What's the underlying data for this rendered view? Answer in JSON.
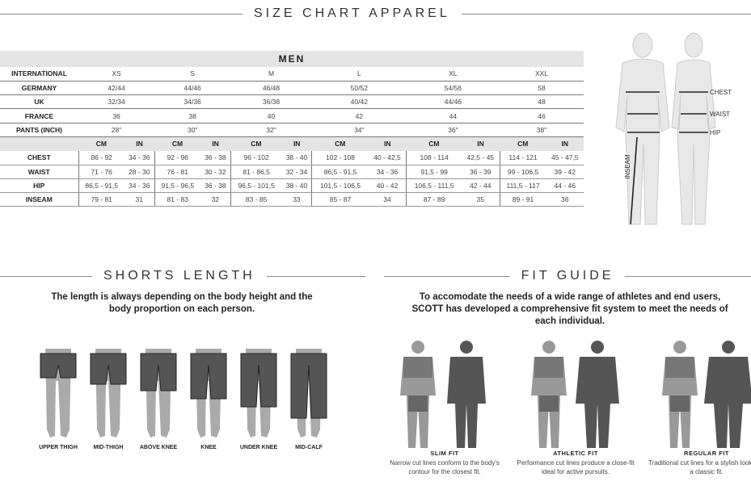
{
  "title": "SIZE CHART APPAREL",
  "men": {
    "header": "MEN",
    "sizes": [
      "XS",
      "S",
      "M",
      "L",
      "XL",
      "XXL"
    ],
    "conversion_rows": [
      {
        "label": "INTERNATIONAL",
        "values": [
          "XS",
          "S",
          "M",
          "L",
          "XL",
          "XXL"
        ]
      },
      {
        "label": "GERMANY",
        "values": [
          "42/44",
          "44/46",
          "46/48",
          "50/52",
          "54/56",
          "58"
        ]
      },
      {
        "label": "UK",
        "values": [
          "32/34",
          "34/36",
          "36/38",
          "40/42",
          "44/46",
          "48"
        ]
      },
      {
        "label": "FRANCE",
        "values": [
          "36",
          "38",
          "40",
          "42",
          "44",
          "46"
        ]
      },
      {
        "label": "PANTS (INCH)",
        "values": [
          "28\"",
          "30\"",
          "32\"",
          "34\"",
          "36\"",
          "38\""
        ]
      }
    ],
    "unit_cm": "CM",
    "unit_in": "IN",
    "measure_rows": [
      {
        "label": "CHEST",
        "values": [
          "86 - 92",
          "34 - 36",
          "92 - 96",
          "36 - 38",
          "96 - 102",
          "38 - 40",
          "102 - 108",
          "40 - 42,5",
          "108 - 114",
          "42,5 - 45",
          "114 - 121",
          "45 - 47,5"
        ]
      },
      {
        "label": "WAIST",
        "values": [
          "71 - 76",
          "28 - 30",
          "76 - 81",
          "30 - 32",
          "81 - 86,5",
          "32 - 34",
          "86,5 - 91,5",
          "34 - 36",
          "91,5 - 99",
          "36 - 39",
          "99 - 106,5",
          "39 - 42"
        ]
      },
      {
        "label": "HIP",
        "values": [
          "86,5 - 91,5",
          "34 - 36",
          "91,5 - 96,5",
          "36 - 38",
          "96,5 - 101,5",
          "38 - 40",
          "101,5 - 106,5",
          "40 - 42",
          "106,5 - 111,5",
          "42 - 44",
          "111,5 - 117",
          "44 - 46"
        ]
      },
      {
        "label": "INSEAM",
        "values": [
          "79 - 81",
          "31",
          "81 - 83",
          "32",
          "83 - 85",
          "33",
          "85 - 87",
          "34",
          "87 - 89",
          "35",
          "89 - 91",
          "36"
        ]
      }
    ]
  },
  "body_labels": {
    "chest": "CHEST",
    "waist": "WAIST",
    "hip": "HIP",
    "inseam": "INSEAM"
  },
  "shorts": {
    "title": "SHORTS LENGTH",
    "text": "The length is always depending on the body height and the body proportion on each person.",
    "items": [
      "UPPER THIGH",
      "MID-THIGH",
      "ABOVE KNEE",
      "KNEE",
      "UNDER KNEE",
      "MID-CALF"
    ]
  },
  "fit": {
    "title": "FIT GUIDE",
    "text": "To accomodate the needs of a wide range of athletes and end users, SCOTT has developed a comprehensive fit system to meet the needs of each individual.",
    "items": [
      {
        "name": "SLIM FIT",
        "desc": "Narrow cut lines conform to the body's contour for the closest fit."
      },
      {
        "name": "ATHLETIC FIT",
        "desc": "Performance cut lines produce a close-fit ideal for active pursuits."
      },
      {
        "name": "REGULAR FIT",
        "desc": "Traditional cut lines for a stylish look and a classic fit."
      }
    ]
  }
}
